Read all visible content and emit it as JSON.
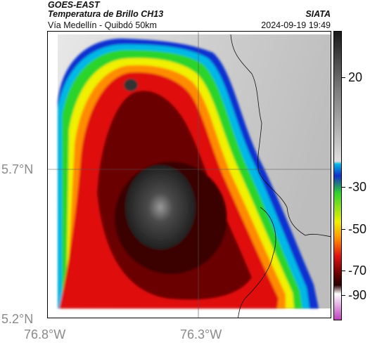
{
  "header": {
    "satellite": "GOES-EAST",
    "product": "Temperatura de Brillo CH13",
    "region": "Vía Medellín - Quibdó 50km",
    "agency": "SIATA",
    "datetime": "2024-09-19 19:49"
  },
  "axes": {
    "lat_labels": [
      "5.7°N",
      "5.2°N"
    ],
    "lon_labels": [
      "76.8°W",
      "76.3°W"
    ]
  },
  "colorbar": {
    "labels": [
      "20",
      "-30",
      "-50",
      "-70",
      "-90"
    ],
    "colors": {
      "warm_gray_top": "#1a1a1a",
      "cyan": "#00b8e6",
      "blue": "#1030d0",
      "green": "#2cd42c",
      "yellow": "#f0f000",
      "orange": "#ff8c00",
      "red": "#e01010",
      "dark_red": "#6a0000",
      "magenta": "#c040c0"
    }
  }
}
